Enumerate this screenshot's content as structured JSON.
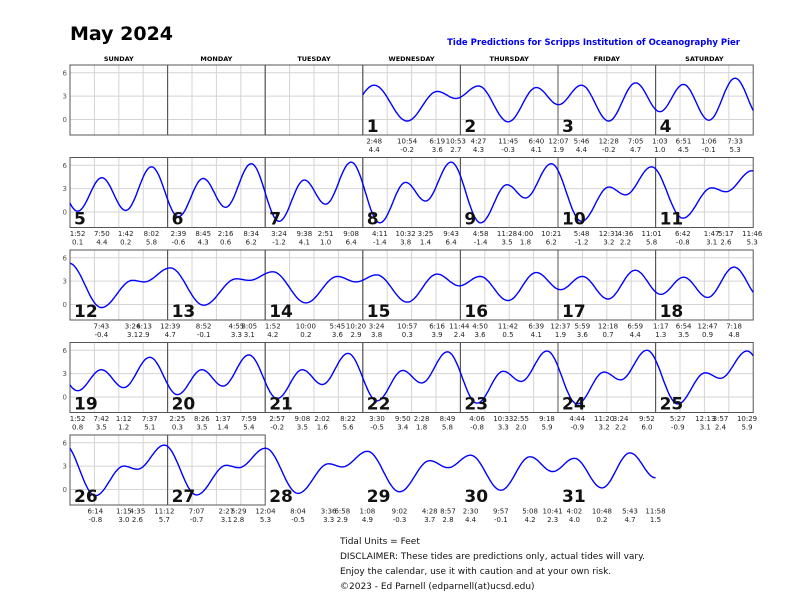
{
  "header": {
    "month_title": "May 2024",
    "subtitle": "Tide Predictions for Scripps Institution of Oceanography Pier"
  },
  "weekdays": [
    "SUNDAY",
    "MONDAY",
    "TUESDAY",
    "WEDNESDAY",
    "THURSDAY",
    "FRIDAY",
    "SATURDAY"
  ],
  "first_weekday_index": 3,
  "colors": {
    "curve": "#0000ff",
    "title": "#0000ee"
  },
  "chart_data": {
    "type": "line",
    "yticks": [
      "6",
      "3",
      "0"
    ],
    "ylim": [
      -2,
      7
    ],
    "units": "feet",
    "days": [
      {
        "day": "1",
        "extremes": [
          [
            "2:48",
            "4.4"
          ],
          [
            "10:54",
            "-0.2"
          ],
          [
            "6:19",
            "3.6"
          ],
          [
            "10:53",
            "2.7"
          ]
        ]
      },
      {
        "day": "2",
        "extremes": [
          [
            "4:27",
            "4.3"
          ],
          [
            "11:45",
            "-0.3"
          ],
          [
            "6:40",
            "4.1"
          ]
        ]
      },
      {
        "day": "3",
        "extremes": [
          [
            "12:07",
            "1.9"
          ],
          [
            "5:46",
            "4.4"
          ],
          [
            "12:28",
            "-0.2"
          ],
          [
            "7:05",
            "4.7"
          ]
        ]
      },
      {
        "day": "4",
        "extremes": [
          [
            "1:03",
            "1.0"
          ],
          [
            "6:51",
            "4.5"
          ],
          [
            "1:06",
            "-0.1"
          ],
          [
            "7:33",
            "5.3"
          ]
        ]
      },
      {
        "day": "5",
        "extremes": [
          [
            "1:52",
            "0.1"
          ],
          [
            "7:50",
            "4.4"
          ],
          [
            "1:42",
            "0.2"
          ],
          [
            "8:02",
            "5.8"
          ]
        ]
      },
      {
        "day": "6",
        "extremes": [
          [
            "2:39",
            "-0.6"
          ],
          [
            "8:45",
            "4.3"
          ],
          [
            "2:16",
            "0.6"
          ],
          [
            "8:34",
            "6.2"
          ]
        ]
      },
      {
        "day": "7",
        "extremes": [
          [
            "3:24",
            "-1.2"
          ],
          [
            "9:38",
            "4.1"
          ],
          [
            "2:51",
            "1.0"
          ],
          [
            "9:08",
            "6.4"
          ]
        ]
      },
      {
        "day": "8",
        "extremes": [
          [
            "4:11",
            "-1.4"
          ],
          [
            "10:32",
            "3.8"
          ],
          [
            "3:25",
            "1.4"
          ],
          [
            "9:43",
            "6.4"
          ]
        ]
      },
      {
        "day": "9",
        "extremes": [
          [
            "4:58",
            "-1.4"
          ],
          [
            "11:28",
            "3.5"
          ],
          [
            "4:00",
            "1.8"
          ],
          [
            "10:21",
            "6.2"
          ]
        ]
      },
      {
        "day": "10",
        "extremes": [
          [
            "5:48",
            "-1.2"
          ],
          [
            "12:31",
            "3.2"
          ],
          [
            "4:36",
            "2.2"
          ],
          [
            "11:01",
            "5.8"
          ]
        ]
      },
      {
        "day": "11",
        "extremes": [
          [
            "6:42",
            "-0.8"
          ],
          [
            "1:47",
            "3.1"
          ],
          [
            "5:17",
            "2.6"
          ],
          [
            "11:46",
            "5.3"
          ]
        ]
      },
      {
        "day": "12",
        "extremes": [
          [
            "7:43",
            "-0.4"
          ],
          [
            "3:24",
            "3.1"
          ],
          [
            "6:13",
            "2.9"
          ]
        ]
      },
      {
        "day": "13",
        "extremes": [
          [
            "12:39",
            "4.7"
          ],
          [
            "8:52",
            "-0.1"
          ],
          [
            "4:55",
            "3.3"
          ],
          [
            "8:05",
            "3.1"
          ]
        ]
      },
      {
        "day": "14",
        "extremes": [
          [
            "1:52",
            "4.2"
          ],
          [
            "10:00",
            "0.2"
          ],
          [
            "5:45",
            "3.6"
          ],
          [
            "10:20",
            "2.9"
          ]
        ]
      },
      {
        "day": "15",
        "extremes": [
          [
            "3:24",
            "3.8"
          ],
          [
            "10:57",
            "0.3"
          ],
          [
            "6:16",
            "3.9"
          ],
          [
            "11:44",
            "2.4"
          ]
        ]
      },
      {
        "day": "16",
        "extremes": [
          [
            "4:50",
            "3.6"
          ],
          [
            "11:42",
            "0.5"
          ],
          [
            "6:39",
            "4.1"
          ]
        ]
      },
      {
        "day": "17",
        "extremes": [
          [
            "12:37",
            "1.9"
          ],
          [
            "5:59",
            "3.6"
          ],
          [
            "12:18",
            "0.7"
          ],
          [
            "6:59",
            "4.4"
          ]
        ]
      },
      {
        "day": "18",
        "extremes": [
          [
            "1:17",
            "1.3"
          ],
          [
            "6:54",
            "3.5"
          ],
          [
            "12:47",
            "0.9"
          ],
          [
            "7:18",
            "4.8"
          ]
        ]
      },
      {
        "day": "19",
        "extremes": [
          [
            "1:52",
            "0.8"
          ],
          [
            "7:42",
            "3.5"
          ],
          [
            "1:12",
            "1.2"
          ],
          [
            "7:37",
            "5.1"
          ]
        ]
      },
      {
        "day": "20",
        "extremes": [
          [
            "2:25",
            "0.3"
          ],
          [
            "8:26",
            "3.5"
          ],
          [
            "1:37",
            "1.4"
          ],
          [
            "7:59",
            "5.4"
          ]
        ]
      },
      {
        "day": "21",
        "extremes": [
          [
            "2:57",
            "-0.2"
          ],
          [
            "9:08",
            "3.5"
          ],
          [
            "2:02",
            "1.6"
          ],
          [
            "8:22",
            "5.6"
          ]
        ]
      },
      {
        "day": "22",
        "extremes": [
          [
            "3:30",
            "-0.5"
          ],
          [
            "9:50",
            "3.4"
          ],
          [
            "2:28",
            "1.8"
          ],
          [
            "8:49",
            "5.8"
          ]
        ]
      },
      {
        "day": "23",
        "extremes": [
          [
            "4:06",
            "-0.8"
          ],
          [
            "10:33",
            "3.3"
          ],
          [
            "2:55",
            "2.0"
          ],
          [
            "9:18",
            "5.9"
          ]
        ]
      },
      {
        "day": "24",
        "extremes": [
          [
            "4:44",
            "-0.9"
          ],
          [
            "11:20",
            "3.2"
          ],
          [
            "3:24",
            "2.2"
          ],
          [
            "9:52",
            "6.0"
          ]
        ]
      },
      {
        "day": "25",
        "extremes": [
          [
            "5:27",
            "-0.9"
          ],
          [
            "12:13",
            "3.1"
          ],
          [
            "3:57",
            "2.4"
          ],
          [
            "10:29",
            "5.9"
          ]
        ]
      },
      {
        "day": "26",
        "extremes": [
          [
            "6:14",
            "-0.8"
          ],
          [
            "1:15",
            "3.0"
          ],
          [
            "4:35",
            "2.6"
          ],
          [
            "11:12",
            "5.7"
          ]
        ]
      },
      {
        "day": "27",
        "extremes": [
          [
            "7:07",
            "-0.7"
          ],
          [
            "2:27",
            "3.1"
          ],
          [
            "5:29",
            "2.8"
          ]
        ]
      },
      {
        "day": "28",
        "extremes": [
          [
            "12:04",
            "5.3"
          ],
          [
            "8:04",
            "-0.5"
          ],
          [
            "3:36",
            "3.3"
          ],
          [
            "6:58",
            "2.9"
          ]
        ]
      },
      {
        "day": "29",
        "extremes": [
          [
            "1:08",
            "4.9"
          ],
          [
            "9:02",
            "-0.3"
          ],
          [
            "4:28",
            "3.7"
          ],
          [
            "8:57",
            "2.8"
          ]
        ]
      },
      {
        "day": "30",
        "extremes": [
          [
            "2:30",
            "4.4"
          ],
          [
            "9:57",
            "-0.1"
          ],
          [
            "5:08",
            "4.2"
          ],
          [
            "10:41",
            "2.3"
          ]
        ]
      },
      {
        "day": "31",
        "extremes": [
          [
            "4:02",
            "4.0"
          ],
          [
            "10:48",
            "0.2"
          ],
          [
            "5:43",
            "4.7"
          ],
          [
            "11:58",
            "1.5"
          ]
        ]
      }
    ]
  },
  "footer": {
    "units": "Tidal Units = Feet",
    "disclaimer": "DISCLAIMER: These tides are predictions only, actual tides will vary.",
    "enjoy": "Enjoy the calendar, use it with caution and at your own risk.",
    "copyright": "©2023 - Ed Parnell (edparnell(at)ucsd.edu)"
  }
}
